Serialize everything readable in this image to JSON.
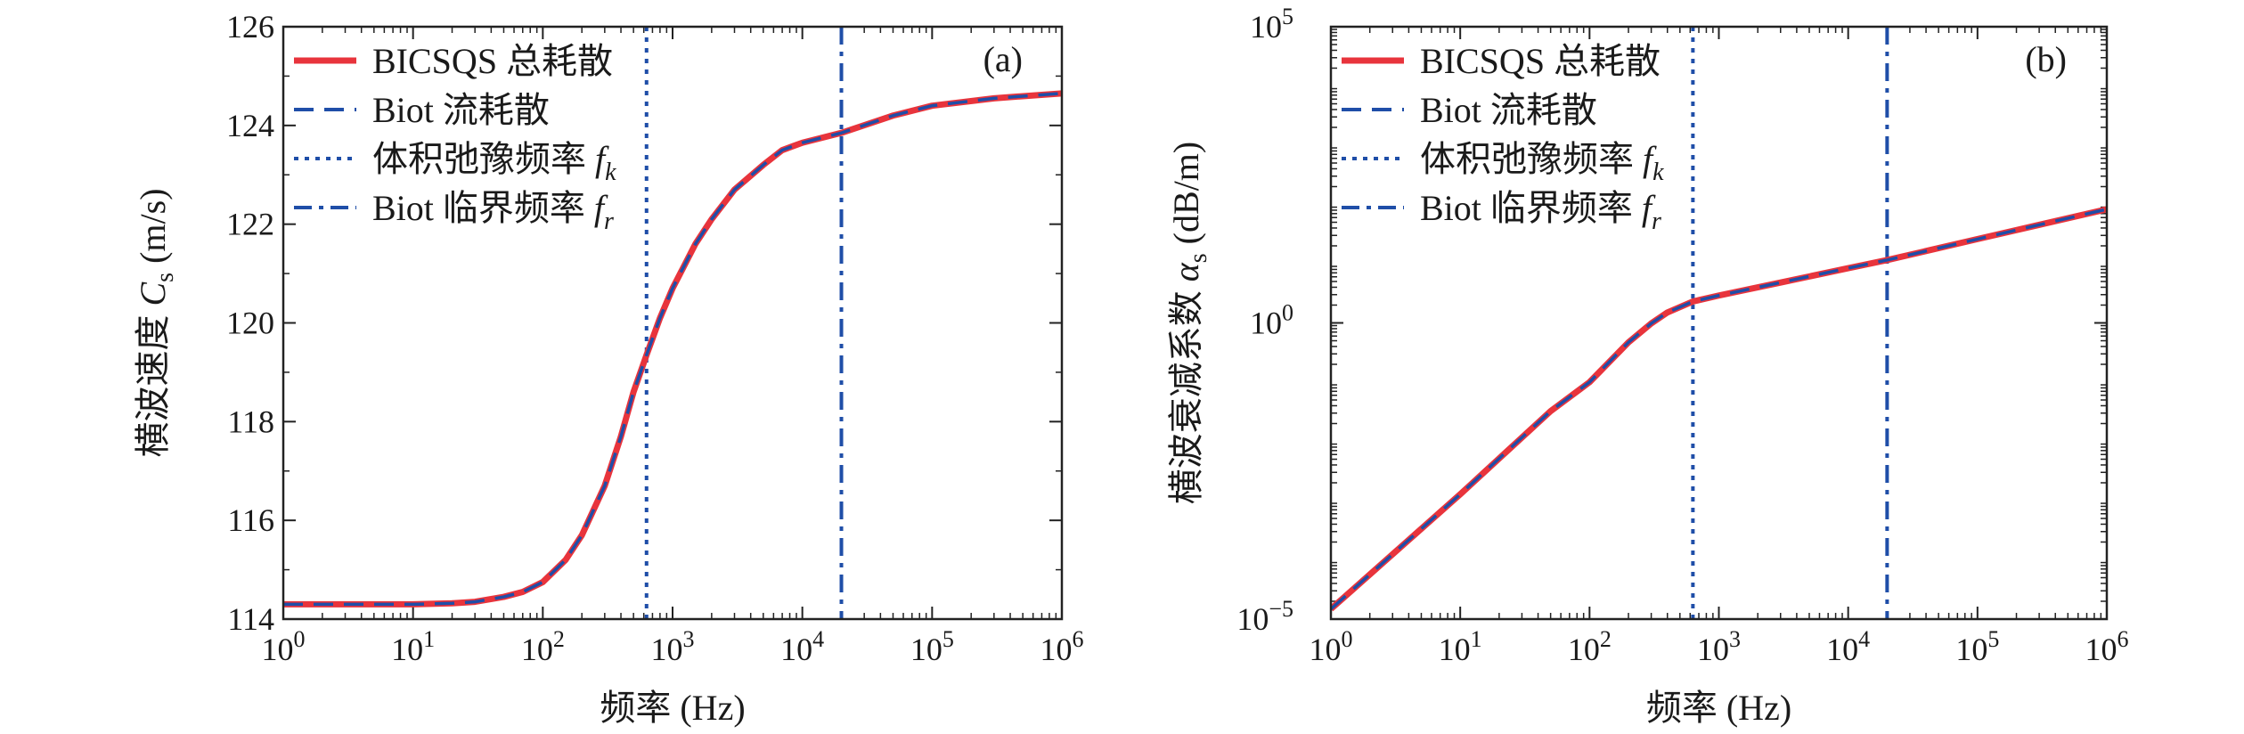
{
  "chart_data": [
    {
      "panel": "(a)",
      "type": "line",
      "xlabel": "频率 (Hz)",
      "ylabel": "横波速度 C_s (m/s)",
      "ylabel_parts": {
        "prefix": "横波速度 ",
        "symbol": "C",
        "sub": "s",
        "suffix": " (m/s)"
      },
      "xscale": "log",
      "yscale": "linear",
      "xlim": [
        1,
        1000000
      ],
      "ylim": [
        114,
        126
      ],
      "xticks": [
        {
          "value": 1,
          "base": "10",
          "exp": "0"
        },
        {
          "value": 10,
          "base": "10",
          "exp": "1"
        },
        {
          "value": 100,
          "base": "10",
          "exp": "2"
        },
        {
          "value": 1000,
          "base": "10",
          "exp": "3"
        },
        {
          "value": 10000,
          "base": "10",
          "exp": "4"
        },
        {
          "value": 100000,
          "base": "10",
          "exp": "5"
        },
        {
          "value": 1000000,
          "base": "10",
          "exp": "6"
        }
      ],
      "yticks": [
        {
          "value": 114,
          "label": "114"
        },
        {
          "value": 116,
          "label": "116"
        },
        {
          "value": 118,
          "label": "118"
        },
        {
          "value": 120,
          "label": "120"
        },
        {
          "value": 122,
          "label": "122"
        },
        {
          "value": 124,
          "label": "124"
        },
        {
          "value": 126,
          "label": "126"
        }
      ],
      "legend": [
        {
          "label": "BICSQS 总耗散",
          "style": "solid",
          "color": "#e8343c"
        },
        {
          "label": "Biot 流耗散",
          "style": "dash",
          "color": "#1f4ea8"
        },
        {
          "label": "体积弛豫频率 ",
          "symbol": "f",
          "sub": "k",
          "style": "dot",
          "color": "#1f4ea8"
        },
        {
          "label": "Biot 临界频率 ",
          "symbol": "f",
          "sub": "r",
          "style": "dashdot",
          "color": "#1f4ea8"
        }
      ],
      "legend_position": "top-left",
      "vlines": [
        {
          "x": 630,
          "style": "dot",
          "color": "#1f4ea8"
        },
        {
          "x": 20000,
          "style": "dashdot",
          "color": "#1f4ea8"
        }
      ],
      "series": [
        {
          "name": "BICSQS 总耗散",
          "color": "#e8343c",
          "style": "solid",
          "x": [
            1,
            3,
            10,
            20,
            30,
            50,
            70,
            100,
            150,
            200,
            300,
            400,
            500,
            630,
            800,
            1000,
            1500,
            2000,
            3000,
            5000,
            7000,
            10000,
            20000,
            50000,
            100000,
            300000,
            1000000
          ],
          "y": [
            114.3,
            114.3,
            114.3,
            114.32,
            114.35,
            114.45,
            114.55,
            114.75,
            115.2,
            115.7,
            116.7,
            117.7,
            118.6,
            119.35,
            120.1,
            120.7,
            121.6,
            122.1,
            122.7,
            123.2,
            123.5,
            123.65,
            123.85,
            124.2,
            124.4,
            124.55,
            124.65
          ]
        },
        {
          "name": "Biot 流耗散",
          "color": "#1f4ea8",
          "style": "dash",
          "x": [
            1,
            3,
            10,
            20,
            30,
            50,
            70,
            100,
            150,
            200,
            300,
            400,
            500,
            630,
            800,
            1000,
            1500,
            2000,
            3000,
            5000,
            7000,
            10000,
            20000,
            50000,
            100000,
            300000,
            1000000
          ],
          "y": [
            114.3,
            114.3,
            114.3,
            114.32,
            114.35,
            114.45,
            114.55,
            114.75,
            115.2,
            115.7,
            116.7,
            117.7,
            118.6,
            119.35,
            120.1,
            120.7,
            121.6,
            122.1,
            122.7,
            123.2,
            123.5,
            123.65,
            123.85,
            124.2,
            124.4,
            124.55,
            124.65
          ]
        }
      ]
    },
    {
      "panel": "(b)",
      "type": "line",
      "xlabel": "频率 (Hz)",
      "ylabel": "横波衰减系数 α_s (dB/m)",
      "ylabel_parts": {
        "prefix": "横波衰减系数 ",
        "symbol": "α",
        "sub": "s",
        "suffix": " (dB/m)"
      },
      "xscale": "log",
      "yscale": "log",
      "xlim": [
        1,
        1000000
      ],
      "ylim": [
        1e-05,
        100000
      ],
      "xticks": [
        {
          "value": 1,
          "base": "10",
          "exp": "0"
        },
        {
          "value": 10,
          "base": "10",
          "exp": "1"
        },
        {
          "value": 100,
          "base": "10",
          "exp": "2"
        },
        {
          "value": 1000,
          "base": "10",
          "exp": "3"
        },
        {
          "value": 10000,
          "base": "10",
          "exp": "4"
        },
        {
          "value": 100000,
          "base": "10",
          "exp": "5"
        },
        {
          "value": 1000000,
          "base": "10",
          "exp": "6"
        }
      ],
      "yticks": [
        {
          "value": 1e-05,
          "base": "10",
          "exp": "−5"
        },
        {
          "value": 1,
          "base": "10",
          "exp": "0"
        },
        {
          "value": 100000,
          "base": "10",
          "exp": "5"
        }
      ],
      "legend": [
        {
          "label": "BICSQS 总耗散",
          "style": "solid",
          "color": "#e8343c"
        },
        {
          "label": "Biot 流耗散",
          "style": "dash",
          "color": "#1f4ea8"
        },
        {
          "label": "体积弛豫频率 ",
          "symbol": "f",
          "sub": "k",
          "style": "dot",
          "color": "#1f4ea8"
        },
        {
          "label": "Biot 临界频率 ",
          "symbol": "f",
          "sub": "r",
          "style": "dashdot",
          "color": "#1f4ea8"
        }
      ],
      "legend_position": "top-left",
      "vlines": [
        {
          "x": 630,
          "style": "dot",
          "color": "#1f4ea8"
        },
        {
          "x": 20000,
          "style": "dashdot",
          "color": "#1f4ea8"
        }
      ],
      "series": [
        {
          "name": "BICSQS 总耗散",
          "color": "#e8343c",
          "style": "solid",
          "x": [
            1,
            10,
            50,
            100,
            200,
            300,
            400,
            630,
            1000,
            3000,
            10000,
            20000,
            100000,
            1000000
          ],
          "y": [
            1.48e-05,
            0.00128,
            0.0324,
            0.1,
            0.47,
            0.98,
            1.5,
            2.3,
            2.9,
            4.8,
            8.4,
            11.5,
            26,
            83
          ]
        },
        {
          "name": "Biot 流耗散",
          "color": "#1f4ea8",
          "style": "dash",
          "x": [
            1,
            10,
            50,
            100,
            200,
            300,
            400,
            630,
            1000,
            3000,
            10000,
            20000,
            100000,
            1000000
          ],
          "y": [
            1.48e-05,
            0.00128,
            0.0324,
            0.1,
            0.47,
            0.98,
            1.5,
            2.3,
            2.9,
            4.8,
            8.4,
            11.5,
            26,
            83
          ]
        }
      ]
    }
  ]
}
